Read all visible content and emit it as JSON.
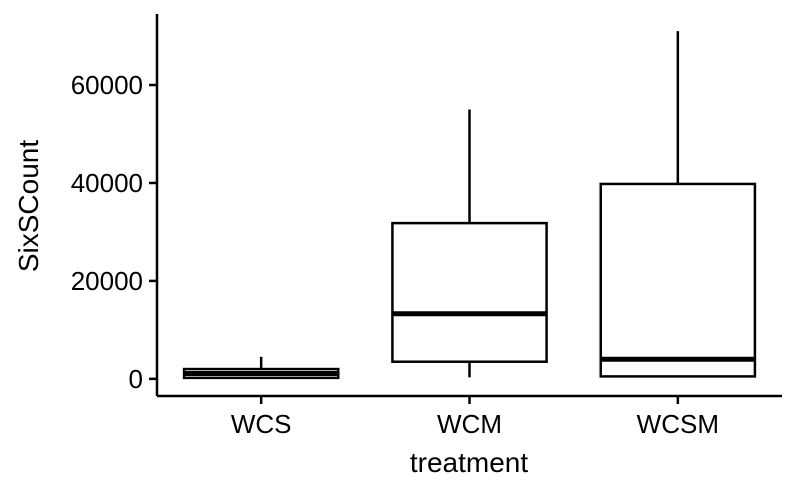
{
  "chart_data": {
    "type": "boxplot",
    "xlabel": "treatment",
    "ylabel": "SixSCount",
    "categories": [
      "WCS",
      "WCM",
      "WCSM"
    ],
    "boxes": [
      {
        "category": "WCS",
        "whisker_low": 100,
        "q1": 200,
        "median": 1100,
        "q3": 2000,
        "whisker_high": 4500
      },
      {
        "category": "WCM",
        "whisker_low": 300,
        "q1": 3500,
        "median": 13300,
        "q3": 31800,
        "whisker_high": 55000
      },
      {
        "category": "WCSM",
        "whisker_low": 300,
        "q1": 500,
        "median": 4000,
        "q3": 39800,
        "whisker_high": 71000
      }
    ],
    "ylim": [
      -3500,
      74500
    ],
    "y_ticks": [
      0,
      20000,
      40000,
      60000
    ],
    "y_tick_labels": [
      "0",
      "20000",
      "40000",
      "60000"
    ],
    "grid": false,
    "legend": "none",
    "colors": {
      "box_fill": "#ffffff",
      "stroke": "#000000"
    }
  }
}
